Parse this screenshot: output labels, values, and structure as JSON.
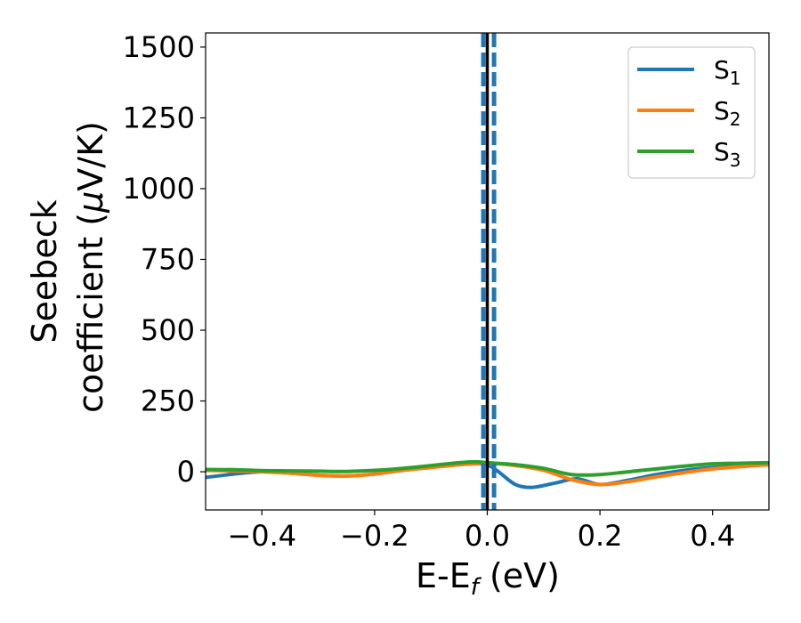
{
  "chart_data": {
    "type": "line",
    "xlabel": "E-E",
    "xlabel_sub": "f",
    "xlabel_unit": " (eV)",
    "ylabel_line1": "Seebeck",
    "ylabel_line2": "coefficient  (",
    "ylabel_mu": "μ",
    "ylabel_unit": "V/K)",
    "xlim": [
      -0.5,
      0.5
    ],
    "ylim": [
      -135,
      1550
    ],
    "xticks": [
      -0.4,
      -0.2,
      0.0,
      0.2,
      0.4
    ],
    "xtick_labels": [
      "−0.4",
      "−0.2",
      "0.0",
      "0.2",
      "0.4"
    ],
    "yticks": [
      0,
      250,
      500,
      750,
      1000,
      1250,
      1500
    ],
    "ytick_labels": [
      "0",
      "250",
      "500",
      "750",
      "1000",
      "1250",
      "1500"
    ],
    "grid": false,
    "legend_position": "top-right",
    "vertical_lines": [
      {
        "x": 0.0,
        "style": "solid",
        "color": "#000000"
      },
      {
        "x": -0.007,
        "style": "dashed",
        "color": "#1f77b4"
      },
      {
        "x": 0.012,
        "style": "dashed",
        "color": "#1f77b4"
      }
    ],
    "series": [
      {
        "name": "S",
        "sub": "1",
        "color": "#1f77b4",
        "x": [
          -0.5,
          -0.45,
          -0.4,
          -0.35,
          -0.3,
          -0.25,
          -0.2,
          -0.15,
          -0.1,
          -0.05,
          -0.02,
          0.0,
          0.02,
          0.05,
          0.08,
          0.12,
          0.16,
          0.2,
          0.25,
          0.3,
          0.35,
          0.4,
          0.45,
          0.5
        ],
        "y": [
          -20,
          -8,
          0,
          -5,
          -12,
          -15,
          -8,
          5,
          15,
          25,
          28,
          25,
          0,
          -45,
          -55,
          -40,
          -25,
          -45,
          -30,
          -10,
          5,
          15,
          20,
          25
        ]
      },
      {
        "name": "S",
        "sub": "2",
        "color": "#ff7f0e",
        "x": [
          -0.5,
          -0.45,
          -0.4,
          -0.35,
          -0.3,
          -0.25,
          -0.2,
          -0.15,
          -0.1,
          -0.05,
          0.0,
          0.05,
          0.1,
          0.15,
          0.2,
          0.25,
          0.3,
          0.35,
          0.4,
          0.45,
          0.5
        ],
        "y": [
          5,
          3,
          0,
          -5,
          -12,
          -15,
          -8,
          5,
          15,
          25,
          30,
          22,
          5,
          -28,
          -45,
          -35,
          -18,
          -3,
          10,
          18,
          25
        ]
      },
      {
        "name": "S",
        "sub": "3",
        "color": "#2ca02c",
        "x": [
          -0.5,
          -0.45,
          -0.4,
          -0.35,
          -0.3,
          -0.25,
          -0.2,
          -0.15,
          -0.1,
          -0.05,
          -0.02,
          0.0,
          0.05,
          0.1,
          0.15,
          0.2,
          0.25,
          0.3,
          0.35,
          0.4,
          0.45,
          0.5
        ],
        "y": [
          8,
          7,
          4,
          3,
          2,
          1,
          5,
          12,
          22,
          32,
          35,
          32,
          25,
          12,
          -10,
          -10,
          0,
          10,
          20,
          28,
          30,
          32
        ]
      }
    ]
  }
}
